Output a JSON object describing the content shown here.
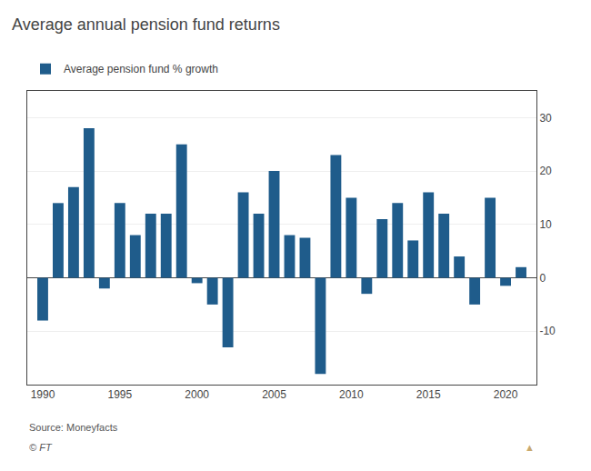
{
  "chart_data": {
    "type": "bar",
    "title": "Average annual pension fund returns",
    "x": [
      1990,
      1991,
      1992,
      1993,
      1994,
      1995,
      1996,
      1997,
      1998,
      1999,
      2000,
      2001,
      2002,
      2003,
      2004,
      2005,
      2006,
      2007,
      2008,
      2009,
      2010,
      2011,
      2012,
      2013,
      2014,
      2015,
      2016,
      2017,
      2018,
      2019,
      2020,
      2021
    ],
    "series": [
      {
        "name": "Average pension fund % growth",
        "color": "#1f5c8b",
        "values": [
          -8.0,
          14.0,
          17.0,
          28.0,
          -2.0,
          14.0,
          8.0,
          12.0,
          12.0,
          25.0,
          -1.0,
          -5.0,
          -13.0,
          16.0,
          12.0,
          20.0,
          8.0,
          7.5,
          -18.0,
          23.0,
          15.0,
          -3.0,
          11.0,
          14.0,
          7.0,
          16.0,
          12.0,
          4.0,
          -5.0,
          15.0,
          -1.5,
          2.0
        ]
      }
    ],
    "xlim": [
      1989,
      2022
    ],
    "xticks": [
      1990,
      1995,
      2000,
      2005,
      2010,
      2015,
      2020
    ],
    "ylim": [
      -20,
      35
    ],
    "yticks": [
      -10,
      0,
      10,
      20,
      30
    ],
    "grid": true,
    "legend": "top left",
    "annotations": [
      {
        "text": "Source: Moneyfacts"
      },
      {
        "text": "© FT"
      },
      {
        "text": "▲",
        "color": "#c9a96e"
      }
    ]
  }
}
